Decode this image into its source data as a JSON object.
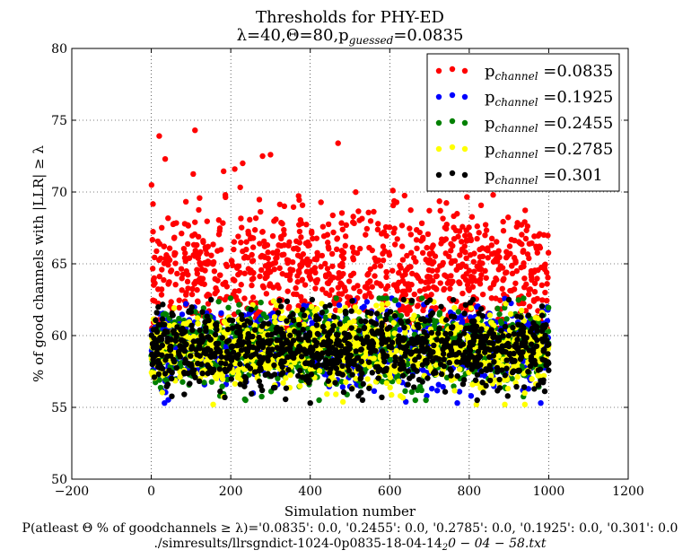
{
  "chart_data": {
    "type": "scatter",
    "title": "Thresholds for PHY-ED",
    "subtitle": "λ=40,Θ=80,p_guessed=0.0835",
    "subtitle_parts": {
      "prefix": "λ=40,Θ=80,p",
      "sub": "guessed",
      "suffix": "=0.0835"
    },
    "xlabel": "Simulation number",
    "ylabel": "% of good channels with |LLR| ≥ λ",
    "xlim": [
      -200,
      1200
    ],
    "ylim": [
      50,
      80
    ],
    "xticks": [
      -200,
      0,
      200,
      400,
      600,
      800,
      1000,
      1200
    ],
    "yticks": [
      50,
      55,
      60,
      65,
      70,
      75,
      80
    ],
    "xtick_labels": [
      "−200",
      "0",
      "200",
      "400",
      "600",
      "800",
      "1000",
      "1200"
    ],
    "ytick_labels": [
      "50",
      "55",
      "60",
      "65",
      "70",
      "75",
      "80"
    ],
    "grid": true,
    "legend_position": "top-right",
    "points_per_series": 1000,
    "series": [
      {
        "name": "p_channel =0.0835",
        "label_prefix": "p",
        "label_sub": "channel",
        "label_suffix": " =0.0835",
        "color": "#ff0000",
        "x_range": [
          0,
          1000
        ],
        "mean": 64.5,
        "spread": 2.2,
        "y_min": 60.5,
        "y_max": 74.3,
        "highlights": [
          [
            20,
            73.9
          ],
          [
            110,
            74.3
          ],
          [
            470,
            73.4
          ],
          [
            35,
            72.3
          ],
          [
            280,
            72.5
          ],
          [
            300,
            72.6
          ],
          [
            210,
            71.6
          ],
          [
            230,
            72.0
          ]
        ]
      },
      {
        "name": "p_channel =0.1925",
        "label_prefix": "p",
        "label_sub": "channel",
        "label_suffix": " =0.1925",
        "color": "#0000ff",
        "x_range": [
          0,
          1000
        ],
        "mean": 59.2,
        "spread": 1.3,
        "y_min": 55.3,
        "y_max": 62.9,
        "highlights": [
          [
            770,
            55.3
          ],
          [
            980,
            55.3
          ]
        ]
      },
      {
        "name": "p_channel =0.2455",
        "label_prefix": "p",
        "label_sub": "channel",
        "label_suffix": " =0.2455",
        "color": "#008000",
        "x_range": [
          0,
          1000
        ],
        "mean": 59.2,
        "spread": 1.3,
        "y_min": 55.5,
        "y_max": 62.9,
        "highlights": []
      },
      {
        "name": "p_channel =0.2785",
        "label_prefix": "p",
        "label_sub": "channel",
        "label_suffix": " =0.2785",
        "color": "#ffff00",
        "x_range": [
          0,
          1000
        ],
        "mean": 59.0,
        "spread": 1.3,
        "y_min": 55.2,
        "y_max": 62.7,
        "highlights": [
          [
            940,
            55.2
          ]
        ]
      },
      {
        "name": "p_channel =0.301",
        "label_prefix": "p",
        "label_sub": "channel",
        "label_suffix": " =0.301",
        "color": "#000000",
        "x_range": [
          0,
          1000
        ],
        "mean": 59.1,
        "spread": 1.3,
        "y_min": 55.3,
        "y_max": 62.8,
        "highlights": [
          [
            400,
            55.3
          ],
          [
            820,
            55.5
          ],
          [
            185,
            55.7
          ],
          [
            580,
            55.7
          ]
        ]
      }
    ],
    "footer_line1": "P(atleast Θ % of goodchannels ≥ λ)='0.0835': 0.0, '0.2455': 0.0, '0.2785': 0.0, '0.1925': 0.0, '0.301': 0.0",
    "footer_line2_prefix": "./simresults/llrsgndict-1024-0p0835-18-04-14",
    "footer_line2_sub": "2",
    "footer_line2_suffix": "0 − 04 − 58.txt"
  }
}
